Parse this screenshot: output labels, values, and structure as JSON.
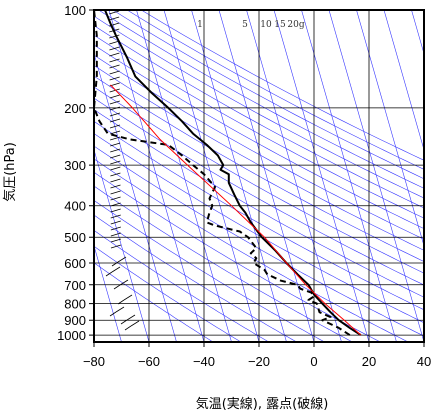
{
  "chart_data": {
    "type": "line",
    "subtype": "skew-t log-p sounding diagram",
    "xlabel": "気温(実線), 露点(破線)",
    "ylabel": "気圧(hPa)",
    "x_axis": {
      "range": [
        -80,
        40
      ],
      "ticks": [
        -80,
        -60,
        -40,
        -20,
        0,
        20,
        40
      ]
    },
    "y_axis": {
      "scale": "log",
      "range": [
        100,
        1050
      ],
      "reversed": true,
      "ticks": [
        100,
        200,
        300,
        400,
        500,
        600,
        700,
        800,
        900,
        1000
      ]
    },
    "mixing_ratio_labels": [
      "1",
      "5",
      "10",
      "15",
      "20g"
    ],
    "grid": true,
    "colors": {
      "frame": "#000000",
      "grid": "#000000",
      "isotherms_and_adiabats": "#3a3aff",
      "temperature": "#000000",
      "dewpoint": "#000000",
      "parcel": "#ff0000"
    },
    "series": [
      {
        "name": "気温",
        "style": "solid",
        "points": [
          [
            1000,
            17
          ],
          [
            950,
            13
          ],
          [
            900,
            9
          ],
          [
            850,
            6
          ],
          [
            800,
            3
          ],
          [
            750,
            0
          ],
          [
            700,
            -2
          ],
          [
            650,
            -6
          ],
          [
            600,
            -10
          ],
          [
            550,
            -14
          ],
          [
            500,
            -19
          ],
          [
            450,
            -23
          ],
          [
            420,
            -25
          ],
          [
            400,
            -27
          ],
          [
            370,
            -29
          ],
          [
            340,
            -31
          ],
          [
            320,
            -31
          ],
          [
            310,
            -34
          ],
          [
            300,
            -33
          ],
          [
            280,
            -35
          ],
          [
            260,
            -39
          ],
          [
            240,
            -44
          ],
          [
            220,
            -48
          ],
          [
            200,
            -53
          ],
          [
            180,
            -59
          ],
          [
            160,
            -65
          ],
          [
            140,
            -68
          ],
          [
            120,
            -72
          ],
          [
            110,
            -74
          ],
          [
            100,
            -76
          ]
        ]
      },
      {
        "name": "露点",
        "style": "dashed",
        "points": [
          [
            1000,
            13
          ],
          [
            950,
            9
          ],
          [
            900,
            3
          ],
          [
            880,
            6
          ],
          [
            850,
            2
          ],
          [
            800,
            1
          ],
          [
            780,
            -2
          ],
          [
            760,
            0
          ],
          [
            740,
            -1
          ],
          [
            720,
            -5
          ],
          [
            700,
            -6
          ],
          [
            680,
            -12
          ],
          [
            650,
            -17
          ],
          [
            630,
            -18
          ],
          [
            600,
            -22
          ],
          [
            580,
            -21
          ],
          [
            560,
            -23
          ],
          [
            540,
            -21
          ],
          [
            500,
            -24
          ],
          [
            480,
            -27
          ],
          [
            460,
            -36
          ],
          [
            450,
            -39
          ],
          [
            420,
            -38
          ],
          [
            400,
            -37
          ],
          [
            380,
            -38
          ],
          [
            350,
            -36
          ],
          [
            320,
            -40
          ],
          [
            300,
            -44
          ],
          [
            280,
            -48
          ],
          [
            260,
            -53
          ],
          [
            250,
            -67
          ],
          [
            240,
            -75
          ],
          [
            220,
            -78
          ],
          [
            200,
            -80
          ],
          [
            160,
            -79
          ],
          [
            120,
            -79
          ],
          [
            100,
            -80
          ]
        ]
      },
      {
        "name": "parcel",
        "style": "solid",
        "points": [
          [
            1000,
            17
          ],
          [
            900,
            11
          ],
          [
            800,
            4
          ],
          [
            700,
            -3
          ],
          [
            600,
            -10
          ],
          [
            500,
            -18
          ],
          [
            400,
            -30
          ],
          [
            300,
            -46
          ],
          [
            250,
            -56
          ],
          [
            200,
            -66
          ],
          [
            170,
            -74
          ]
        ]
      }
    ]
  }
}
